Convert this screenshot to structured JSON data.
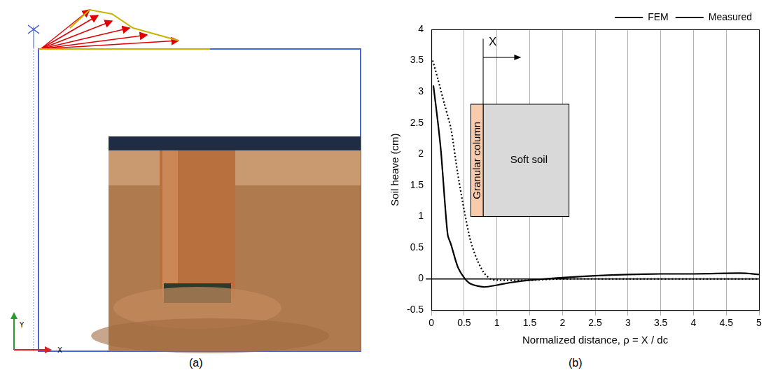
{
  "chart_data": {
    "type": "line",
    "panel_label": "(b)",
    "x_label": "Normalized distance, ρ = X / dc",
    "y_label": "Soil heave (cm)",
    "series": [
      {
        "name": "FEM",
        "color": "#000000",
        "line_style": "solid",
        "x": [
          0.03,
          0.1,
          0.15,
          0.2,
          0.25,
          0.3,
          0.4,
          0.5,
          0.6,
          0.8,
          1.0,
          1.2,
          1.5,
          2.0,
          2.5,
          3.0,
          3.5,
          4.0,
          4.5,
          4.8,
          5.0
        ],
        "values": [
          3.1,
          2.5,
          2.0,
          1.3,
          0.7,
          0.55,
          0.2,
          0.02,
          -0.08,
          -0.13,
          -0.1,
          -0.06,
          -0.02,
          0.02,
          0.05,
          0.07,
          0.08,
          0.08,
          0.09,
          0.09,
          0.07
        ]
      },
      {
        "name": "Measured",
        "color": "#000000",
        "line_style": "dotted",
        "x": [
          0.02,
          0.1,
          0.2,
          0.3,
          0.4,
          0.5,
          0.6,
          0.7,
          0.8,
          0.9,
          1.0,
          1.5,
          2.0,
          3.0,
          4.0,
          5.0
        ],
        "values": [
          3.5,
          3.2,
          2.8,
          2.4,
          1.7,
          1.1,
          0.6,
          0.3,
          0.1,
          0.0,
          -0.02,
          -0.02,
          0.0,
          0.0,
          0.0,
          0.0
        ]
      }
    ],
    "xlim": [
      0,
      5
    ],
    "xticks": [
      0,
      0.5,
      1,
      1.5,
      2,
      2.5,
      3,
      3.5,
      4,
      4.5,
      5
    ],
    "ylim": [
      -0.5,
      4
    ],
    "yticks": [
      -0.5,
      0,
      0.5,
      1,
      1.5,
      2,
      2.5,
      3,
      3.5,
      4
    ],
    "grid": "x",
    "legend": "top right",
    "annotations": [
      {
        "text": "X"
      },
      {
        "text": "Granular column"
      },
      {
        "text": "Soft soil"
      }
    ]
  },
  "figure_a": {
    "panel_label": "(a)",
    "axis_labels": {
      "x": "X",
      "y": "Y"
    }
  }
}
